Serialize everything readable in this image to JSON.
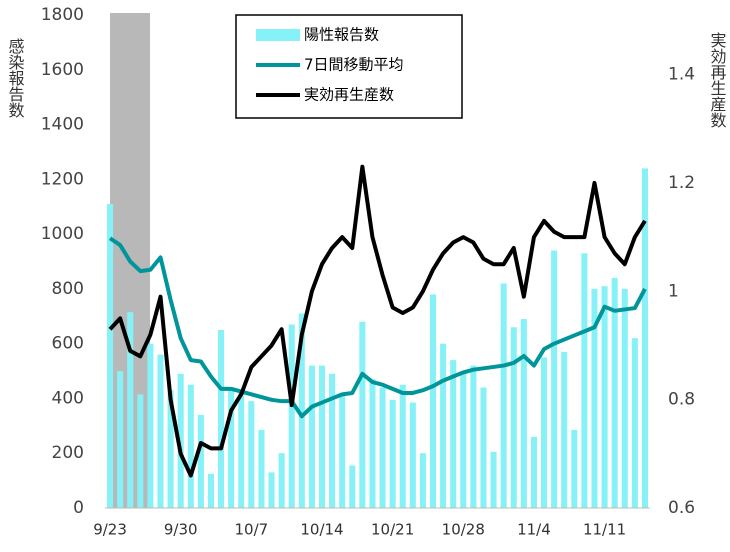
{
  "chart_data": {
    "type": "bar-line",
    "y_label": "感染報告数",
    "y2_label": "実効再生産数",
    "categories": [
      "9/23",
      null,
      null,
      null,
      null,
      null,
      null,
      "9/30",
      null,
      null,
      null,
      null,
      null,
      null,
      "10/7",
      null,
      null,
      null,
      null,
      null,
      null,
      "10/14",
      null,
      null,
      null,
      null,
      null,
      null,
      "10/21",
      null,
      null,
      null,
      null,
      null,
      null,
      "10/28",
      null,
      null,
      null,
      null,
      null,
      null,
      "11/4",
      null,
      null,
      null,
      null,
      null,
      null,
      "11/11",
      null,
      null,
      null,
      null
    ],
    "series": [
      {
        "name": "陽性報告数",
        "kind": "bar",
        "color": "#86f2f7",
        "values": [
          1110,
          500,
          715,
          415,
          600,
          560,
          430,
          490,
          450,
          340,
          125,
          650,
          440,
          420,
          390,
          285,
          130,
          200,
          670,
          710,
          520,
          520,
          490,
          420,
          155,
          680,
          470,
          440,
          395,
          450,
          385,
          200,
          780,
          600,
          540,
          500,
          520,
          440,
          205,
          820,
          660,
          690,
          260,
          550,
          940,
          570,
          285,
          930,
          800,
          810,
          840,
          800,
          620,
          1240
        ]
      },
      {
        "name": "7日間移動平均",
        "kind": "line",
        "color": "#00959a",
        "values": [
          985,
          960,
          900,
          865,
          870,
          915,
          760,
          620,
          540,
          535,
          480,
          435,
          435,
          425,
          415,
          405,
          395,
          390,
          390,
          335,
          370,
          385,
          400,
          415,
          420,
          490,
          460,
          450,
          435,
          420,
          420,
          430,
          445,
          465,
          480,
          495,
          505,
          510,
          515,
          520,
          530,
          555,
          520,
          580,
          600,
          615,
          630,
          645,
          660,
          735,
          720,
          725,
          730,
          800
        ]
      },
      {
        "name": "実効再生産数",
        "kind": "line",
        "axis": "y2",
        "color": "#000000",
        "values": [
          0.93,
          0.95,
          0.89,
          0.88,
          0.92,
          0.99,
          0.8,
          0.7,
          0.66,
          0.72,
          0.71,
          0.71,
          0.78,
          0.81,
          0.86,
          0.88,
          0.9,
          0.93,
          0.79,
          0.92,
          1.0,
          1.05,
          1.08,
          1.1,
          1.08,
          1.23,
          1.1,
          1.03,
          0.97,
          0.96,
          0.97,
          1.0,
          1.04,
          1.07,
          1.09,
          1.1,
          1.09,
          1.06,
          1.05,
          1.05,
          1.08,
          0.99,
          1.1,
          1.13,
          1.11,
          1.1,
          1.1,
          1.1,
          1.2,
          1.1,
          1.07,
          1.05,
          1.1,
          1.13
        ]
      }
    ],
    "ylim": [
      0,
      1800
    ],
    "yticks": [
      0,
      200,
      400,
      600,
      800,
      1000,
      1200,
      1400,
      1600,
      1800
    ],
    "y2lim": [
      0.6,
      1.51
    ],
    "y2ticks": [
      0.6,
      0.8,
      1,
      1.2,
      1.4
    ]
  }
}
